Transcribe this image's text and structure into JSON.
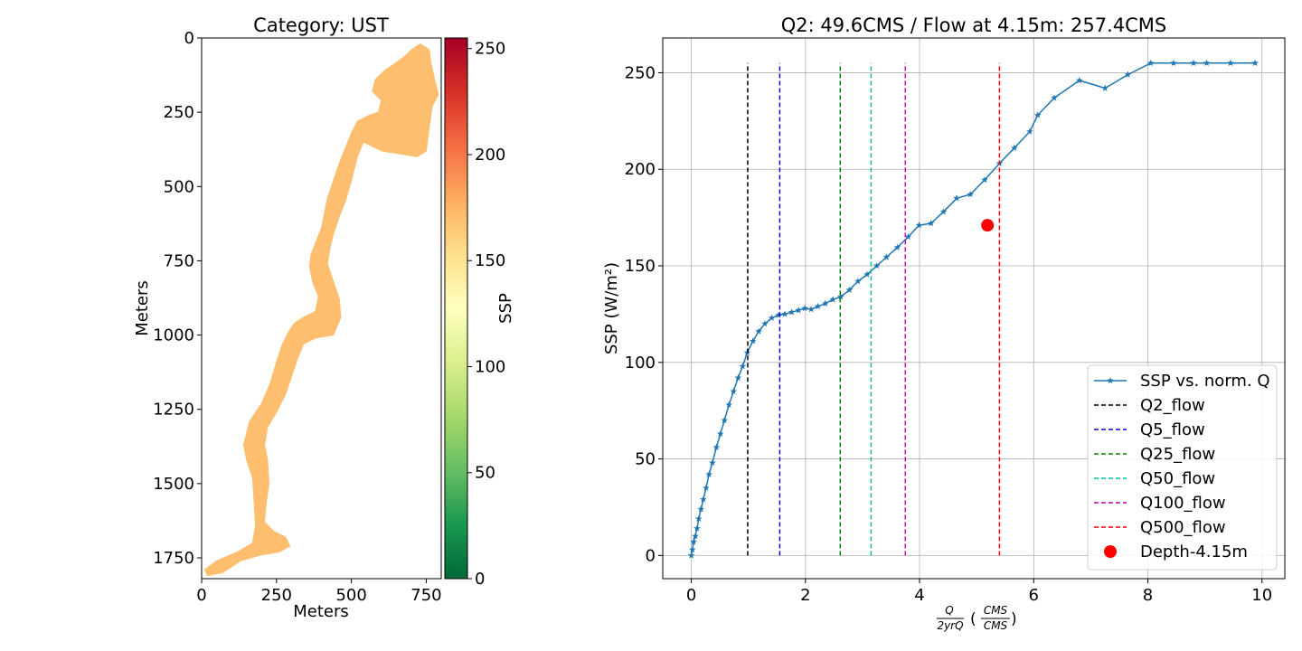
{
  "chart_data": [
    {
      "type": "heatmap",
      "title": "Category: UST",
      "xlabel": "Meters",
      "ylabel": "Meters",
      "xlim": [
        0,
        800
      ],
      "ylim": [
        1820,
        0
      ],
      "x_ticks": [
        0,
        250,
        500,
        750
      ],
      "y_ticks": [
        0,
        250,
        500,
        750,
        1000,
        1250,
        1500,
        1750
      ],
      "fill_value": 160,
      "fill_color": "#fdbf6f",
      "colorbar": {
        "label": "SSP",
        "range": [
          0,
          255
        ],
        "ticks": [
          0,
          50,
          100,
          150,
          200,
          250
        ],
        "colormap": "RdYlGn_r",
        "stops": [
          "#006837",
          "#1a9850",
          "#66bd63",
          "#a6d96a",
          "#d9ef8b",
          "#ffffbf",
          "#fee08b",
          "#fdae61",
          "#f46d43",
          "#d73027",
          "#a50026"
        ]
      },
      "region_outline": [
        [
          730,
          20
        ],
        [
          760,
          40
        ],
        [
          765,
          80
        ],
        [
          778,
          140
        ],
        [
          790,
          190
        ],
        [
          770,
          230
        ],
        [
          760,
          300
        ],
        [
          750,
          380
        ],
        [
          720,
          400
        ],
        [
          660,
          390
        ],
        [
          600,
          380
        ],
        [
          560,
          360
        ],
        [
          540,
          350
        ],
        [
          520,
          400
        ],
        [
          500,
          480
        ],
        [
          480,
          550
        ],
        [
          460,
          600
        ],
        [
          440,
          660
        ],
        [
          430,
          700
        ],
        [
          420,
          760
        ],
        [
          440,
          820
        ],
        [
          460,
          880
        ],
        [
          465,
          940
        ],
        [
          440,
          1000
        ],
        [
          380,
          1010
        ],
        [
          340,
          1030
        ],
        [
          320,
          1080
        ],
        [
          300,
          1140
        ],
        [
          280,
          1200
        ],
        [
          250,
          1260
        ],
        [
          220,
          1310
        ],
        [
          210,
          1370
        ],
        [
          220,
          1420
        ],
        [
          225,
          1500
        ],
        [
          215,
          1570
        ],
        [
          210,
          1630
        ],
        [
          240,
          1660
        ],
        [
          280,
          1680
        ],
        [
          295,
          1710
        ],
        [
          260,
          1730
        ],
        [
          200,
          1740
        ],
        [
          130,
          1760
        ],
        [
          70,
          1800
        ],
        [
          20,
          1810
        ],
        [
          10,
          1790
        ],
        [
          50,
          1760
        ],
        [
          120,
          1730
        ],
        [
          170,
          1700
        ],
        [
          180,
          1640
        ],
        [
          175,
          1560
        ],
        [
          170,
          1480
        ],
        [
          150,
          1420
        ],
        [
          140,
          1370
        ],
        [
          160,
          1290
        ],
        [
          200,
          1230
        ],
        [
          230,
          1160
        ],
        [
          250,
          1090
        ],
        [
          270,
          1030
        ],
        [
          290,
          990
        ],
        [
          310,
          960
        ],
        [
          340,
          940
        ],
        [
          380,
          920
        ],
        [
          390,
          870
        ],
        [
          370,
          820
        ],
        [
          360,
          770
        ],
        [
          365,
          730
        ],
        [
          380,
          690
        ],
        [
          400,
          640
        ],
        [
          410,
          590
        ],
        [
          420,
          540
        ],
        [
          440,
          480
        ],
        [
          460,
          420
        ],
        [
          480,
          370
        ],
        [
          500,
          320
        ],
        [
          520,
          280
        ],
        [
          560,
          260
        ],
        [
          590,
          250
        ],
        [
          600,
          210
        ],
        [
          570,
          180
        ],
        [
          580,
          140
        ],
        [
          610,
          110
        ],
        [
          640,
          90
        ],
        [
          680,
          60
        ],
        [
          700,
          40
        ]
      ]
    },
    {
      "type": "line",
      "title": "Q2: 49.6CMS / Flow at 4.15m: 257.4CMS",
      "xlabel_parts": {
        "q": "Q",
        "den": "2yrQ",
        "unit_num": "CMS",
        "unit_den": "CMS"
      },
      "ylabel": "SSP (W/m²)",
      "xlim": [
        -0.5,
        10.4
      ],
      "ylim": [
        -12,
        268
      ],
      "x_ticks": [
        0,
        2,
        4,
        6,
        8,
        10
      ],
      "y_ticks": [
        0,
        50,
        100,
        150,
        200,
        250
      ],
      "grid": true,
      "legend_position": "lower-right",
      "series": [
        {
          "name": "SSP vs. norm. Q",
          "color": "#1f77b4",
          "marker": "star",
          "x": [
            0,
            0.02,
            0.04,
            0.07,
            0.1,
            0.13,
            0.17,
            0.21,
            0.26,
            0.31,
            0.37,
            0.44,
            0.51,
            0.58,
            0.66,
            0.74,
            0.82,
            0.9,
            0.98,
            1.08,
            1.18,
            1.29,
            1.41,
            1.53,
            1.64,
            1.76,
            1.88,
            1.99,
            2.1,
            2.22,
            2.35,
            2.48,
            2.62,
            2.77,
            2.92,
            3.08,
            3.25,
            3.42,
            3.61,
            3.8,
            3.99,
            4.2,
            4.42,
            4.65,
            4.89,
            5.14,
            5.4,
            5.66,
            5.93,
            6.07,
            6.36,
            6.8,
            7.25,
            7.65,
            8.05,
            8.45,
            8.8,
            9.03,
            9.45,
            9.88
          ],
          "y": [
            0,
            3,
            7,
            10,
            14,
            19,
            24,
            29,
            35,
            42,
            48,
            56,
            63,
            70,
            78,
            85,
            92,
            98,
            105,
            111,
            116,
            120,
            123,
            124.5,
            125,
            126,
            127,
            128,
            127.5,
            129,
            130.5,
            132.5,
            134,
            137.5,
            142,
            145.5,
            150,
            154.5,
            159.5,
            165,
            171,
            172,
            178,
            185,
            187,
            194.5,
            203,
            211,
            219.5,
            228,
            237,
            246,
            242,
            249,
            255,
            255,
            255,
            255,
            255,
            255
          ]
        },
        {
          "name": "Q2_flow",
          "color": "#000000",
          "style": "dashed",
          "x": [
            0.99,
            0.99
          ],
          "y": [
            0,
            255
          ]
        },
        {
          "name": "Q5_flow",
          "color": "#0000cc",
          "style": "dashed",
          "x": [
            1.55,
            1.55
          ],
          "y": [
            0,
            255
          ]
        },
        {
          "name": "Q25_flow",
          "color": "#008000",
          "style": "dashed",
          "x": [
            2.61,
            2.61
          ],
          "y": [
            0,
            255
          ]
        },
        {
          "name": "Q50_flow",
          "color": "#00bfa0",
          "style": "dashed",
          "x": [
            3.15,
            3.15
          ],
          "y": [
            0,
            255
          ]
        },
        {
          "name": "Q100_flow",
          "color": "#bf00bf",
          "style": "dashed",
          "x": [
            3.75,
            3.75
          ],
          "y": [
            0,
            255
          ]
        },
        {
          "name": "Q500_flow",
          "color": "#ff0000",
          "style": "dashed",
          "x": [
            5.4,
            5.4
          ],
          "y": [
            0,
            255
          ]
        },
        {
          "name": "Depth-4.15m",
          "color": "#ff0000",
          "marker": "circle",
          "x": [
            5.19
          ],
          "y": [
            171
          ]
        }
      ]
    }
  ]
}
